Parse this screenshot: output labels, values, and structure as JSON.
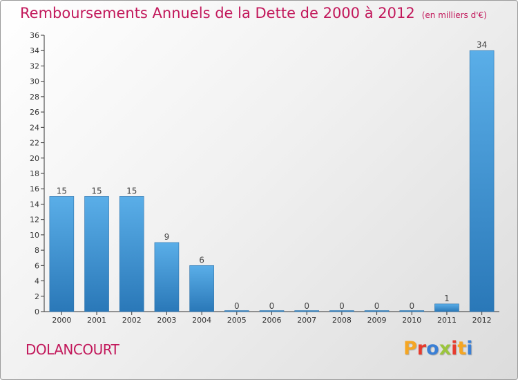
{
  "title": "Remboursements Annuels de la Dette de 2000 à 2012",
  "unit_note": "(en milliers d'€)",
  "commune": "DOLANCOURT",
  "logo_text": "Proxiti",
  "colors": {
    "title": "#c2185b",
    "bar_top": "#5aaee8",
    "bar_bottom": "#2a78b8",
    "logo_letters": [
      "#f5a623",
      "#e63b2e",
      "#3a7fd5",
      "#9bc53d",
      "#e63b2e",
      "#f5a623",
      "#3a7fd5"
    ]
  },
  "chart_data": {
    "type": "bar",
    "categories": [
      "2000",
      "2001",
      "2002",
      "2003",
      "2004",
      "2005",
      "2006",
      "2007",
      "2008",
      "2009",
      "2010",
      "2011",
      "2012"
    ],
    "values": [
      15,
      15,
      15,
      9,
      6,
      0,
      0,
      0,
      0,
      0,
      0,
      1,
      34
    ],
    "data_labels": [
      "15",
      "15",
      "15",
      "9",
      "6",
      "0",
      "0",
      "0",
      "0",
      "0",
      "0",
      "1",
      "34"
    ],
    "ylim": [
      0,
      36
    ],
    "yticks": [
      0,
      2,
      4,
      6,
      8,
      10,
      12,
      14,
      16,
      18,
      20,
      22,
      24,
      26,
      28,
      30,
      32,
      34,
      36
    ],
    "xlabel": "",
    "ylabel": "",
    "grid": false
  }
}
